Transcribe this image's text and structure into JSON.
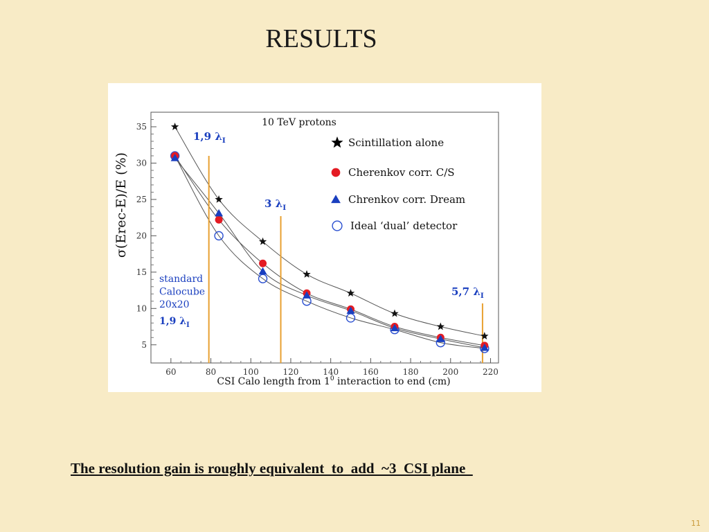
{
  "slide": {
    "title": "RESULTS",
    "footer": "The resolution gain is roughly equivalent  to  add  ~3  CSI plane  ",
    "page_number": "11"
  },
  "chart_data": {
    "type": "scatter",
    "title": "10 TeV protons",
    "xlabel": "CSI Calo length from 1",
    "xlabel_sup": "0",
    "xlabel_tail": " interaction to end (cm)",
    "ylabel": "σ(Erec-E)/E  (%)",
    "xlim": [
      50,
      224
    ],
    "ylim": [
      2.5,
      37
    ],
    "xticks": [
      60,
      80,
      100,
      120,
      140,
      160,
      180,
      200,
      220
    ],
    "yticks": [
      5,
      10,
      15,
      20,
      25,
      30,
      35
    ],
    "x": [
      62,
      84,
      106,
      128,
      150,
      172,
      195,
      217
    ],
    "series": [
      {
        "name": "Scintillation alone",
        "marker": "star",
        "color": "#111111",
        "values": [
          35,
          25,
          19.2,
          14.7,
          12.1,
          9.3,
          7.5,
          6.2
        ]
      },
      {
        "name": "Cherenkov corr. C/S",
        "marker": "circle",
        "color": "#e41b23",
        "values": [
          31,
          22.2,
          16.2,
          12.1,
          9.9,
          7.5,
          6.0,
          4.9
        ]
      },
      {
        "name": "Chrenkov corr.  Dream",
        "marker": "triangle",
        "color": "#1a3fbf",
        "values": [
          30.7,
          23.1,
          15.1,
          11.8,
          9.7,
          7.3,
          5.8,
          4.6
        ]
      },
      {
        "name": "Ideal ‘dual’ detector",
        "marker": "open-circle",
        "color": "#2a4fd0",
        "values": [
          31,
          20,
          14.1,
          11.0,
          8.7,
          7.1,
          5.3,
          4.5
        ]
      }
    ],
    "vlines": [
      {
        "x": 79,
        "color": "#e8a030"
      },
      {
        "x": 115,
        "color": "#e8a030"
      },
      {
        "x": 216,
        "color": "#e8a030"
      }
    ],
    "annotations": [
      {
        "id": "lambda-19",
        "text": "1,9 ",
        "sym": "λ",
        "sub": "I"
      },
      {
        "id": "lambda-3",
        "text": "3 ",
        "sym": "λ",
        "sub": "I"
      },
      {
        "id": "lambda-57",
        "text": "5,7 ",
        "sym": "λ",
        "sub": "I"
      },
      {
        "id": "standard-calocube",
        "lines": [
          "standard",
          "Calocube",
          "20x20"
        ]
      },
      {
        "id": "lambda-19-small",
        "text": "1,9 ",
        "sym": "λ",
        "sub": "I"
      }
    ],
    "legend_position": "top-right",
    "grid": false
  }
}
